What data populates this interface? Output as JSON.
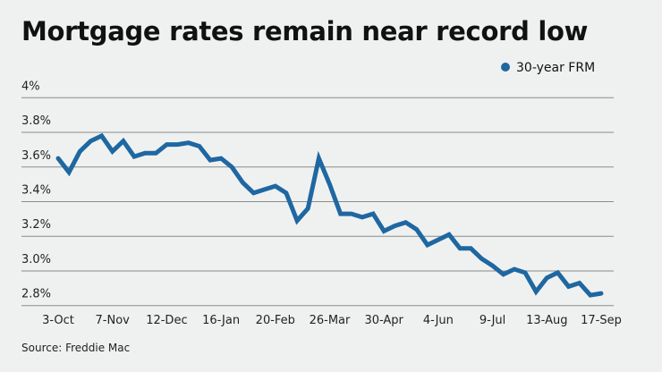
{
  "chart_data": {
    "type": "line",
    "title": "Mortgage rates remain near record low",
    "source": "Source: Freddie Mac",
    "legend_position": "top-right",
    "grid": true,
    "ylim": [
      2.8,
      4.0
    ],
    "yticks": [
      4.0,
      3.8,
      3.6,
      3.4,
      3.2,
      3.0,
      2.8
    ],
    "ytick_labels": [
      "4%",
      "3.8%",
      "3.6%",
      "3.4%",
      "3.2%",
      "3.0%",
      "2.8%"
    ],
    "xtick_labels": [
      "3-Oct",
      "7-Nov",
      "12-Dec",
      "16-Jan",
      "20-Feb",
      "26-Mar",
      "30-Apr",
      "4-Jun",
      "9-Jul",
      "13-Aug",
      "17-Sep"
    ],
    "xtick_every": 5,
    "series": [
      {
        "name": "30-year FRM",
        "color": "#1f67a1",
        "values": [
          3.65,
          3.57,
          3.69,
          3.75,
          3.78,
          3.69,
          3.75,
          3.66,
          3.68,
          3.68,
          3.73,
          3.73,
          3.74,
          3.72,
          3.64,
          3.65,
          3.6,
          3.51,
          3.45,
          3.47,
          3.49,
          3.45,
          3.29,
          3.36,
          3.65,
          3.5,
          3.33,
          3.33,
          3.31,
          3.33,
          3.23,
          3.26,
          3.28,
          3.24,
          3.15,
          3.18,
          3.21,
          3.13,
          3.13,
          3.07,
          3.03,
          2.98,
          3.01,
          2.99,
          2.88,
          2.96,
          2.99,
          2.91,
          2.93,
          2.86,
          2.87
        ]
      }
    ]
  }
}
